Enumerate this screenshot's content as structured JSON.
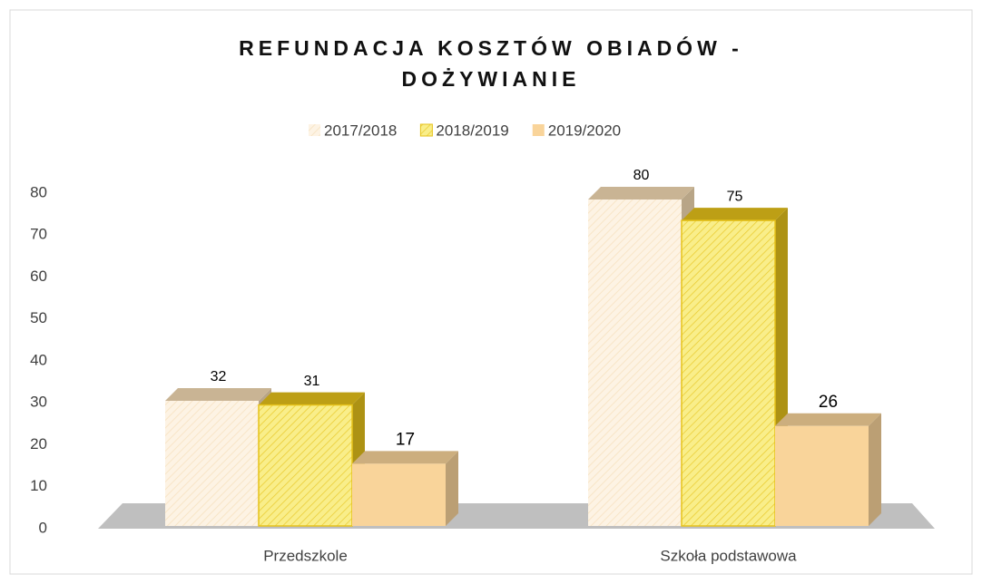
{
  "chart_data": {
    "type": "bar3d",
    "title": "REFUNDACJA KOSZTÓW OBIADÓW - DOŻYWIANIE",
    "categories": [
      "Przedszkole",
      "Szkoła podstawowa"
    ],
    "series": [
      {
        "name": "2017/2018",
        "color": "#f5dcb4",
        "values": [
          32,
          80
        ]
      },
      {
        "name": "2018/2019",
        "color": "#e6c21a",
        "values": [
          31,
          75
        ]
      },
      {
        "name": "2019/2020",
        "color": "#f9d49a",
        "values": [
          17,
          26
        ]
      }
    ],
    "ylim": [
      0,
      80
    ],
    "yticks": [
      0,
      10,
      20,
      30,
      40,
      50,
      60,
      70,
      80
    ],
    "grid": false,
    "legend": "top"
  }
}
